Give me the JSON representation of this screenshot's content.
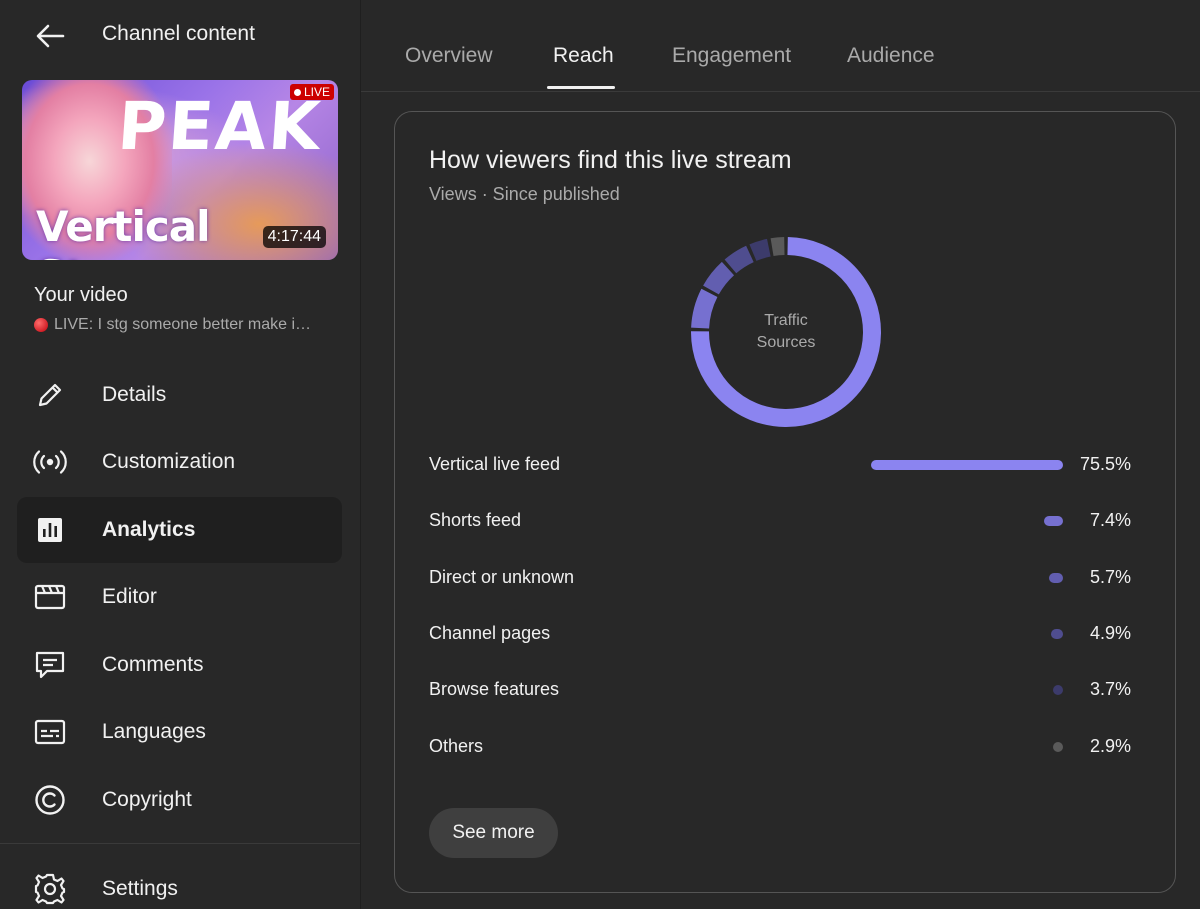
{
  "header": {
    "title": "Channel content"
  },
  "video": {
    "live_badge": "LIVE",
    "duration": "4:17:44",
    "thumb_text_top": "PEAK",
    "thumb_text_bottom": "Vertical Stream",
    "section_label": "Your video",
    "title": "LIVE: I stg someone better make i…"
  },
  "nav": {
    "items": [
      {
        "label": "Details",
        "icon": "pencil-icon"
      },
      {
        "label": "Customization",
        "icon": "broadcast-icon"
      },
      {
        "label": "Analytics",
        "icon": "analytics-icon",
        "active": true
      },
      {
        "label": "Editor",
        "icon": "clapperboard-icon"
      },
      {
        "label": "Comments",
        "icon": "comment-icon"
      },
      {
        "label": "Languages",
        "icon": "subtitles-icon"
      },
      {
        "label": "Copyright",
        "icon": "copyright-icon"
      }
    ],
    "settings": {
      "label": "Settings",
      "icon": "gear-icon"
    }
  },
  "tabs": [
    {
      "label": "Overview",
      "active": false
    },
    {
      "label": "Reach",
      "active": true
    },
    {
      "label": "Engagement",
      "active": false
    },
    {
      "label": "Audience",
      "active": false
    }
  ],
  "card": {
    "title": "How viewers find this live stream",
    "subtitle": "Views · Since published",
    "donut_label_line1": "Traffic",
    "donut_label_line2": "Sources",
    "see_more": "See more"
  },
  "chart_data": {
    "type": "pie",
    "title": "How viewers find this live stream",
    "categories": [
      "Vertical live feed",
      "Shorts feed",
      "Direct or unknown",
      "Channel pages",
      "Browse features",
      "Others"
    ],
    "values": [
      75.5,
      7.4,
      5.7,
      4.9,
      3.7,
      2.9
    ],
    "labels": [
      "75.5%",
      "7.4%",
      "5.7%",
      "4.9%",
      "3.7%",
      "2.9%"
    ],
    "colors": [
      "#8b84f0",
      "#7670d0",
      "#625eb0",
      "#4f4d8f",
      "#3c3b6b",
      "#5a5a5a"
    ]
  }
}
